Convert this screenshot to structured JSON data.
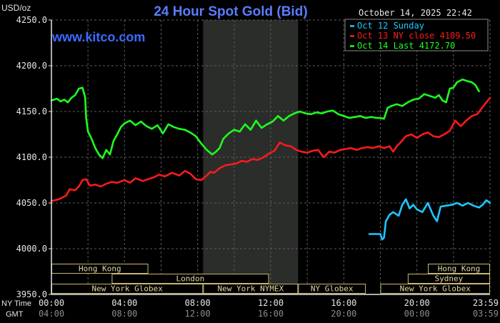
{
  "chart_data": {
    "type": "line",
    "title": "24 Hour Spot Gold (Bid)",
    "site": "www.kitco.com",
    "timestamp": "October 14, 2025 22:42",
    "ylabel": "USD/oz",
    "ylim": [
      3950,
      4250
    ],
    "ytick_values": [
      3950,
      4000,
      4050,
      4100,
      4150,
      4200,
      4250
    ],
    "ytick_labels": [
      "3950.0",
      "4000.0",
      "4050.0",
      "4100.0",
      "4150.0",
      "4200.0",
      "4250.0"
    ],
    "x_row_labels": {
      "ny": "NY Time",
      "gmt": "GMT"
    },
    "xlim": [
      0,
      24
    ],
    "xtick_values": [
      0,
      4,
      8,
      12,
      16,
      20,
      24
    ],
    "xticks_ny": [
      "00:00",
      "04:00",
      "08:00",
      "12:00",
      "16:00",
      "20:00",
      "23:59"
    ],
    "xticks_gmt": [
      "04:00",
      "08:00",
      "12:00",
      "16:00",
      "20:00",
      "00:00",
      "03:59"
    ],
    "grid": true,
    "legend_position": "top-right",
    "shaded_session_hours": [
      8.3,
      13.5
    ],
    "markets": [
      {
        "name": "Hong Kong",
        "row": 0,
        "start": 0,
        "end": 5.3
      },
      {
        "name": "Hong Kong",
        "row": 0,
        "start": 20.6,
        "end": 24
      },
      {
        "name": "London",
        "row": 1,
        "start": 3.3,
        "end": 11.9
      },
      {
        "name": "Sydney",
        "row": 1,
        "start": 19.5,
        "end": 24
      },
      {
        "name": "New York Globex",
        "row": 2,
        "start": 0,
        "end": 8.3
      },
      {
        "name": "New York NYMEX",
        "row": 2,
        "start": 8.3,
        "end": 13.5
      },
      {
        "name": "NY Globex",
        "row": 2,
        "start": 13.5,
        "end": 17.2
      },
      {
        "name": "New York Globex",
        "row": 2,
        "start": 18,
        "end": 24
      }
    ],
    "series": [
      {
        "name": "Oct 12 Sunday",
        "color": "#1ec8ff",
        "x": [
          17.4,
          18.0,
          18.1,
          18.2,
          18.3,
          18.5,
          18.7,
          19.0,
          19.2,
          19.4,
          19.6,
          19.8,
          20.0,
          20.3,
          20.6,
          20.9,
          21.1,
          21.3,
          21.6,
          21.9,
          22.2,
          22.5,
          22.8,
          23.1,
          23.4,
          23.6,
          23.8,
          24.0
        ],
        "y": [
          4016,
          4016,
          4010,
          4012,
          4030,
          4037,
          4040,
          4036,
          4048,
          4054,
          4044,
          4048,
          4043,
          4040,
          4050,
          4036,
          4030,
          4046,
          4047,
          4048,
          4050,
          4047,
          4050,
          4047,
          4045,
          4048,
          4053,
          4050
        ]
      },
      {
        "name": "Oct 13 NY close 4109.50",
        "color": "#ff1a1a",
        "x": [
          0,
          0.4,
          0.8,
          1.0,
          1.3,
          1.5,
          1.7,
          1.9,
          2.1,
          2.4,
          2.7,
          3.0,
          3.3,
          3.6,
          4.0,
          4.3,
          4.6,
          5.0,
          5.3,
          5.6,
          5.9,
          6.2,
          6.6,
          7.0,
          7.3,
          7.6,
          7.9,
          8.2,
          8.5,
          8.7,
          8.9,
          9.2,
          9.5,
          9.8,
          10.1,
          10.4,
          10.7,
          11.0,
          11.3,
          11.6,
          11.9,
          12.2,
          12.5,
          12.8,
          13.1,
          13.4,
          13.7,
          14.0,
          14.3,
          14.6,
          14.9,
          15.2,
          15.5,
          15.8,
          16.1,
          16.4,
          16.7,
          17.0,
          17.3,
          17.6,
          17.9,
          18.2,
          18.5,
          18.7,
          18.9,
          19.1,
          19.4,
          19.7,
          20.0,
          20.3,
          20.6,
          20.9,
          21.2,
          21.5,
          21.8,
          22.1,
          22.4,
          22.7,
          23.0,
          23.3,
          23.6,
          24.0
        ],
        "y": [
          4052,
          4054,
          4058,
          4065,
          4064,
          4068,
          4075,
          4076,
          4069,
          4070,
          4068,
          4071,
          4073,
          4072,
          4075,
          4072,
          4077,
          4074,
          4076,
          4078,
          4081,
          4079,
          4083,
          4080,
          4085,
          4082,
          4076,
          4075,
          4080,
          4084,
          4083,
          4088,
          4091,
          4092,
          4093,
          4096,
          4095,
          4098,
          4097,
          4100,
          4104,
          4107,
          4116,
          4113,
          4112,
          4108,
          4106,
          4105,
          4107,
          4108,
          4100,
          4106,
          4105,
          4108,
          4109,
          4110,
          4108,
          4110,
          4111,
          4110,
          4112,
          4110,
          4112,
          4106,
          4112,
          4116,
          4123,
          4125,
          4121,
          4125,
          4127,
          4123,
          4122,
          4125,
          4129,
          4140,
          4134,
          4140,
          4145,
          4147,
          4155,
          4165
        ]
      },
      {
        "name": "Oct 14 Last 4172.70",
        "color": "#1eff1e",
        "x": [
          0,
          0.3,
          0.5,
          0.7,
          0.9,
          1.1,
          1.3,
          1.5,
          1.7,
          1.85,
          1.9,
          2.0,
          2.2,
          2.4,
          2.6,
          2.8,
          3.0,
          3.2,
          3.4,
          3.6,
          3.8,
          4.0,
          4.3,
          4.6,
          4.9,
          5.2,
          5.5,
          5.8,
          6.1,
          6.4,
          6.7,
          7.0,
          7.3,
          7.6,
          7.9,
          8.2,
          8.5,
          8.8,
          9.0,
          9.2,
          9.4,
          9.7,
          10.0,
          10.3,
          10.6,
          10.9,
          11.2,
          11.5,
          11.8,
          12.1,
          12.4,
          12.7,
          13.0,
          13.3,
          13.6,
          13.9,
          14.2,
          14.5,
          14.8,
          15.1,
          15.4,
          15.7,
          16.0,
          16.3,
          16.6,
          16.9,
          17.2,
          17.5,
          17.8,
          18.0,
          18.2,
          18.4,
          18.6,
          18.9,
          19.2,
          19.5,
          19.8,
          20.1,
          20.4,
          20.7,
          21.0,
          21.2,
          21.4,
          21.6,
          21.8,
          22.0,
          22.2,
          22.5,
          22.8,
          23.0,
          23.2,
          23.4
        ],
        "y": [
          4162,
          4164,
          4161,
          4163,
          4160,
          4165,
          4168,
          4175,
          4176,
          4165,
          4143,
          4128,
          4120,
          4110,
          4103,
          4099,
          4108,
          4103,
          4118,
          4125,
          4133,
          4137,
          4140,
          4135,
          4139,
          4134,
          4131,
          4135,
          4126,
          4136,
          4133,
          4131,
          4130,
          4127,
          4123,
          4115,
          4108,
          4103,
          4106,
          4110,
          4120,
          4126,
          4130,
          4128,
          4136,
          4130,
          4140,
          4132,
          4136,
          4139,
          4145,
          4140,
          4145,
          4148,
          4150,
          4148,
          4147,
          4149,
          4148,
          4150,
          4151,
          4147,
          4145,
          4143,
          4144,
          4145,
          4143,
          4144,
          4143,
          4143,
          4142,
          4154,
          4156,
          4158,
          4156,
          4160,
          4163,
          4164,
          4169,
          4167,
          4165,
          4168,
          4162,
          4160,
          4175,
          4176,
          4182,
          4185,
          4183,
          4182,
          4179,
          4172
        ]
      }
    ]
  }
}
